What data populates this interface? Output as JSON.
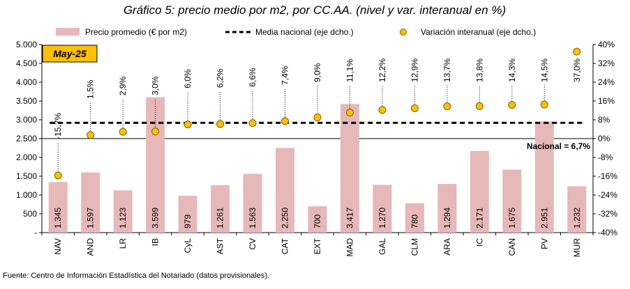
{
  "chart_data": {
    "type": "bar",
    "title": "Gráfico 5: precio medio por m2, por CC.AA. (nivel y var. interanual en %)",
    "period_label": "May-25",
    "categories": [
      "NAV",
      "AND",
      "LR",
      "IB",
      "CyL",
      "AST",
      "CV",
      "CAT",
      "EXT",
      "MAD",
      "GAL",
      "CLM",
      "ARA",
      "IC",
      "CAN",
      "PV",
      "MUR"
    ],
    "series": [
      {
        "name": "Precio promedio (€ por m2)",
        "axis": "left",
        "kind": "bar",
        "color": "#e6b8b7",
        "values": [
          1345,
          1597,
          1123,
          3599,
          979,
          1261,
          1563,
          2250,
          700,
          3417,
          1270,
          780,
          1294,
          2171,
          1675,
          2951,
          1232
        ],
        "labels": [
          "1.345",
          "1.597",
          "1.123",
          "3.599",
          "979",
          "1.261",
          "1.563",
          "2.250",
          "700",
          "3.417",
          "1.270",
          "780",
          "1.294",
          "2.171",
          "1.675",
          "2.951",
          "1.232"
        ]
      },
      {
        "name": "Media nacional (eje dcho.)",
        "axis": "right",
        "kind": "dashed-line",
        "color": "#000000",
        "value": 6.7
      },
      {
        "name": "Variación interanual (eje dcho.)",
        "axis": "right",
        "kind": "markers",
        "color": "#ffc000",
        "values": [
          -15.7,
          1.5,
          2.9,
          3.0,
          6.0,
          6.2,
          6.6,
          7.4,
          9.0,
          11.1,
          12.2,
          12.9,
          13.7,
          13.8,
          14.3,
          14.5,
          37.0
        ],
        "labels": [
          "-15,7%",
          "1,5%",
          "2,9%",
          "3,0%",
          "6,0%",
          "6,2%",
          "6,6%",
          "7,4%",
          "9,0%",
          "11,1%",
          "12,2%",
          "12,9%",
          "13,7%",
          "13,8%",
          "14,3%",
          "14,5%",
          "37,0%"
        ]
      }
    ],
    "y_left": {
      "min": 0,
      "max": 5000,
      "step": 500,
      "ticks": [
        "-",
        "500",
        "1.000",
        "1.500",
        "2.000",
        "2.500",
        "3.000",
        "3.500",
        "4.000",
        "4.500",
        "5.000"
      ]
    },
    "y_right": {
      "min": -40,
      "max": 40,
      "step": 8,
      "ticks": [
        "-40%",
        "-32%",
        "-24%",
        "-16%",
        "-8%",
        "0%",
        "8%",
        "16%",
        "24%",
        "32%",
        "40%"
      ]
    },
    "nacional_label": "Nacional = 6,7%",
    "gridlines": false,
    "legend_position": "top"
  },
  "footer": "Fuente: Centro de Información Estadística del Notariado (datos provisionales)."
}
